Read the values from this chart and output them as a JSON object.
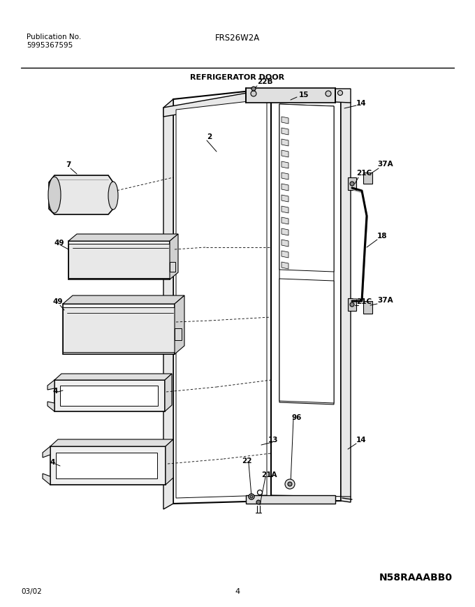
{
  "title_left1": "Publication No.",
  "title_left2": "5995367595",
  "title_center": "FRS26W2A",
  "section_title": "REFRIGERATOR DOOR",
  "bottom_left": "03/02",
  "bottom_center": "4",
  "bottom_right": "N58RAAABB0",
  "bg_color": "#ffffff",
  "lc": "#000000",
  "fig_width": 6.8,
  "fig_height": 8.7
}
